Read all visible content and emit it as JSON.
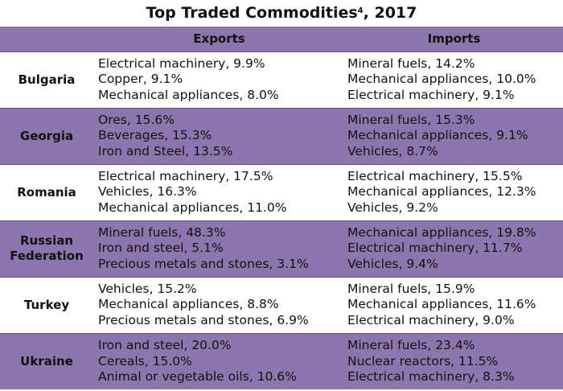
{
  "title": "Top Traded Commodities",
  "title_footnote": "4",
  "title_year": ", 2017",
  "headers": {
    "country": "",
    "exports": "Exports",
    "imports": "Imports"
  },
  "rows": [
    {
      "country": "Bulgaria",
      "exports": [
        "Electrical machinery, 9.9%",
        "Copper, 9.1%",
        "Mechanical appliances, 8.0%"
      ],
      "imports": [
        "Mineral fuels, 14.2%",
        "Mechanical appliances, 10.0%",
        "Electrical machinery, 9.1%"
      ]
    },
    {
      "country": "Georgia",
      "exports": [
        "Ores, 15.6%",
        "Beverages, 15.3%",
        "Iron and Steel, 13.5%"
      ],
      "imports": [
        "Mineral fuels, 15.3%",
        "Mechanical appliances, 9.1%",
        "Vehicles, 8.7%"
      ]
    },
    {
      "country": "Romania",
      "exports": [
        "Electrical machinery, 17.5%",
        "Vehicles, 16.3%",
        "Mechanical appliances, 11.0%"
      ],
      "imports": [
        "Electrical machinery, 15.5%",
        "Mechanical appliances, 12.3%",
        "Vehicles, 9.2%"
      ]
    },
    {
      "country": "Russian Federation",
      "country_lines": [
        "Russian",
        "Federation"
      ],
      "exports": [
        "Mineral fuels, 48.3%",
        "Iron and steel, 5.1%",
        "Precious metals and stones, 3.1%"
      ],
      "imports": [
        "Mechanical appliances, 19.8%",
        "Electrical machinery, 11.7%",
        "Vehicles, 9.4%"
      ]
    },
    {
      "country": "Turkey",
      "exports": [
        "Vehicles, 15.2%",
        "Mechanical appliances, 8.8%",
        "Precious metals and stones, 6.9%"
      ],
      "imports": [
        "Mineral fuels, 15.9%",
        "Mechanical appliances, 11.6%",
        "Electrical machinery, 9.0%"
      ]
    },
    {
      "country": "Ukraine",
      "exports": [
        "Iron and steel, 20.0%",
        "Cereals, 15.0%",
        "Animal or vegetable oils, 10.6%"
      ],
      "imports": [
        "Mineral fuels, 23.4%",
        "Nuclear reactors, 11.5%",
        "Electrical machinery, 8.3%"
      ]
    }
  ],
  "colors": {
    "header_band": "#8c76ae",
    "alt_row": "#8c76ae",
    "plain_row": "#ffffff",
    "text": "#111111"
  }
}
